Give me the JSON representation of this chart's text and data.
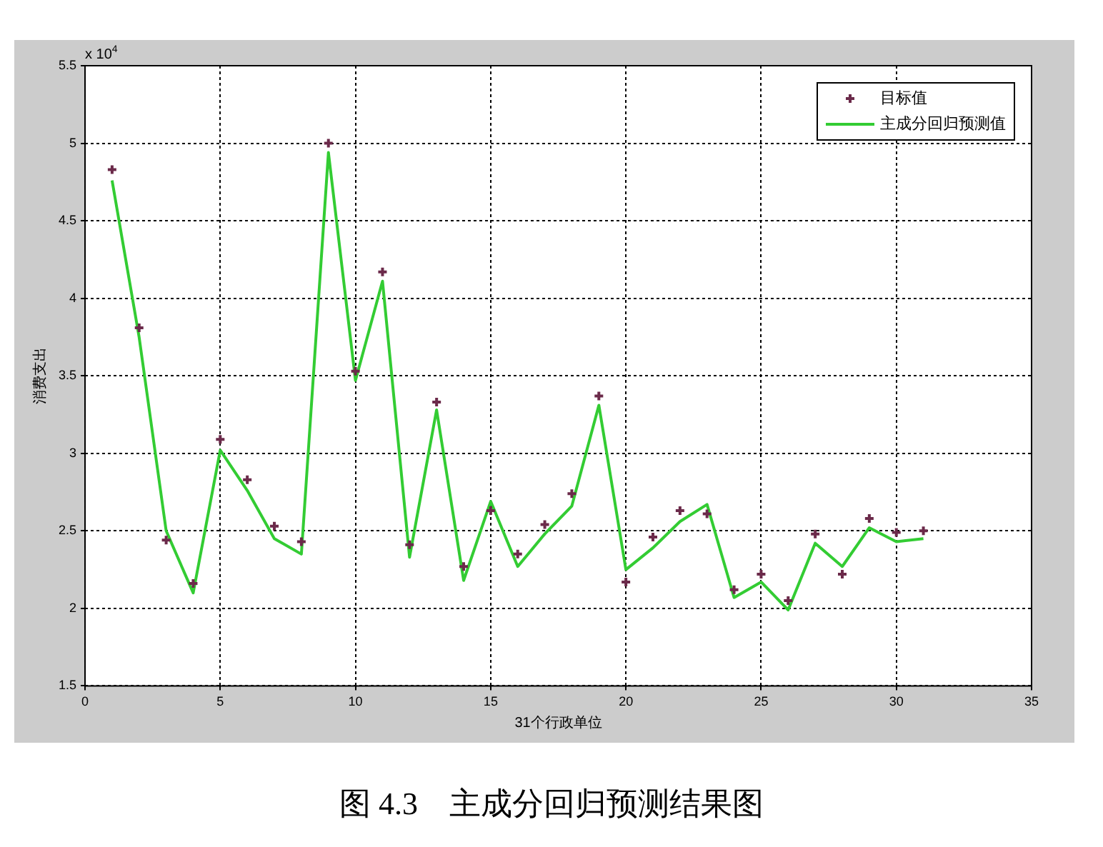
{
  "chart_data": {
    "type": "scatter",
    "title": "图 4.3　主成分回归预测结果图",
    "xlabel": "31个行政单位",
    "ylabel": "消费支出",
    "annotations": [
      "x 10$^{4}$"
    ],
    "x": [
      1,
      2,
      3,
      4,
      5,
      6,
      7,
      8,
      9,
      10,
      11,
      12,
      13,
      14,
      15,
      16,
      17,
      18,
      19,
      20,
      21,
      22,
      23,
      24,
      25,
      26,
      27,
      28,
      29,
      30,
      31
    ],
    "series": [
      {
        "name": "目标值",
        "color": "#6b2a4a",
        "values": [
          4.83,
          3.81,
          2.44,
          2.16,
          3.09,
          2.83,
          2.53,
          2.43,
          5.0,
          3.53,
          4.17,
          2.41,
          3.33,
          2.27,
          2.63,
          2.35,
          2.54,
          2.74,
          3.37,
          2.17,
          2.46,
          2.63,
          2.61,
          2.12,
          2.22,
          2.05,
          2.48,
          2.22,
          2.58,
          2.49,
          2.5
        ]
      },
      {
        "name": "主成分回归预测值",
        "type": "line",
        "marker": "none",
        "color": "#33cc33",
        "values": [
          4.76,
          3.75,
          2.5,
          2.1,
          3.02,
          2.76,
          2.45,
          2.35,
          4.94,
          3.47,
          4.11,
          2.33,
          3.28,
          2.18,
          2.69,
          2.27,
          2.48,
          2.66,
          3.31,
          2.25,
          2.39,
          2.56,
          2.67,
          2.07,
          2.17,
          1.99,
          2.42,
          2.27,
          2.52,
          2.43,
          2.45
        ]
      }
    ],
    "xlim": [
      0,
      35
    ],
    "xticks": [
      0,
      5,
      10,
      15,
      20,
      25,
      30,
      35
    ],
    "ylim": [
      1.5,
      5.5
    ],
    "yticks": [
      1.5,
      2,
      2.5,
      3,
      3.5,
      4,
      4.5,
      5,
      5.5
    ],
    "grid": true,
    "legend": "top right",
    "marker": "cross",
    "line_style": "solid"
  }
}
